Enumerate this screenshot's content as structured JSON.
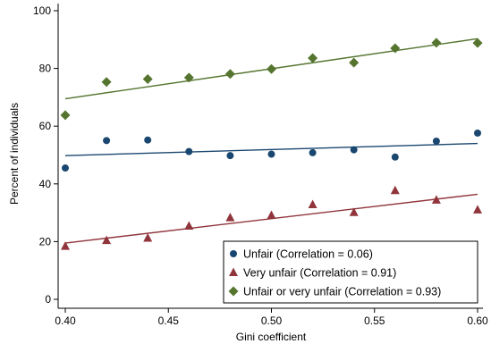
{
  "chart_data": {
    "type": "scatter",
    "xlabel": "Gini coefficient",
    "ylabel": "Percent of individuals",
    "xlim": [
      0.4,
      0.6
    ],
    "ylim": [
      0,
      100
    ],
    "xticks": [
      "0.40",
      "0.45",
      "0.50",
      "0.55",
      "0.60"
    ],
    "xtick_values": [
      0.4,
      0.45,
      0.5,
      0.55,
      0.6
    ],
    "yticks": [
      "0",
      "20",
      "40",
      "60",
      "80",
      "100"
    ],
    "ytick_values": [
      0,
      20,
      40,
      60,
      80,
      100
    ],
    "grid": false,
    "legend_position": "bottom-right",
    "series": [
      {
        "name": "Unfair (Correlation = 0.06)",
        "marker": "circle",
        "color": "#1a476f",
        "x": [
          0.4,
          0.42,
          0.44,
          0.46,
          0.48,
          0.5,
          0.52,
          0.54,
          0.56,
          0.58,
          0.6
        ],
        "y": [
          45.5,
          55.0,
          55.2,
          51.2,
          49.8,
          50.3,
          50.8,
          51.8,
          49.3,
          54.8,
          57.6
        ],
        "fit": [
          49.8,
          54.0
        ]
      },
      {
        "name": "Very unfair (Correlation = 0.91)",
        "marker": "triangle",
        "color": "#90353b",
        "x": [
          0.4,
          0.42,
          0.44,
          0.46,
          0.48,
          0.5,
          0.52,
          0.54,
          0.56,
          0.58,
          0.6
        ],
        "y": [
          18.4,
          20.4,
          21.2,
          25.4,
          28.3,
          29.1,
          32.8,
          30.1,
          37.7,
          34.4,
          31.0
        ],
        "fit": [
          19.5,
          36.4
        ]
      },
      {
        "name": "Unfair or very unfair (Correlation = 0.93)",
        "marker": "diamond",
        "color": "#55752f",
        "x": [
          0.4,
          0.42,
          0.44,
          0.46,
          0.48,
          0.5,
          0.52,
          0.54,
          0.56,
          0.58,
          0.6
        ],
        "y": [
          63.8,
          75.3,
          76.3,
          76.8,
          78.1,
          79.8,
          83.6,
          82.0,
          87.0,
          88.9,
          88.8
        ],
        "fit": [
          69.5,
          90.3
        ]
      }
    ]
  }
}
